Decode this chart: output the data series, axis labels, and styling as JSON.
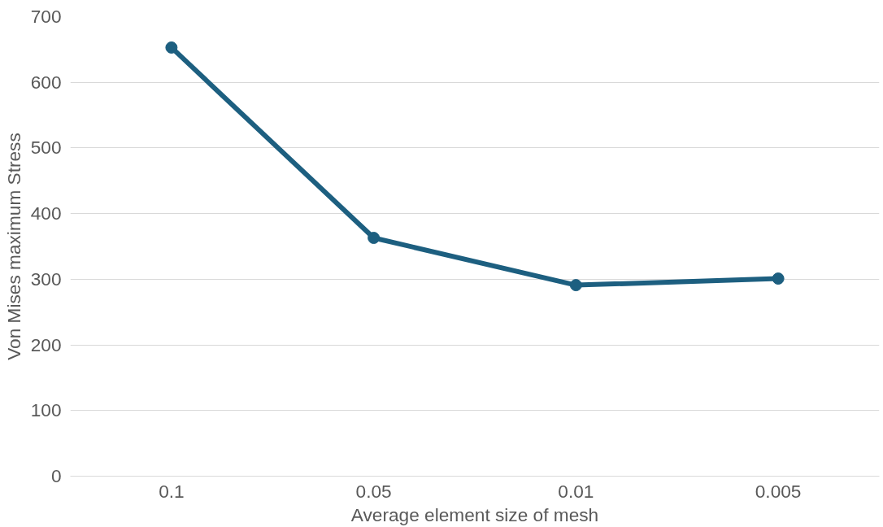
{
  "chart_data": {
    "type": "line",
    "xlabel": "Average element size of mesh",
    "ylabel": "Von Mises maximum Stress",
    "categories": [
      "0.1",
      "0.05",
      "0.01",
      "0.005"
    ],
    "series": [
      {
        "color": "#1d5f80",
        "values": [
          653,
          363,
          291,
          301
        ]
      }
    ],
    "ylim": [
      0,
      700
    ],
    "yticks": [
      0,
      100,
      200,
      300,
      400,
      500,
      600,
      700
    ],
    "grid": "y",
    "marker": "circle",
    "line_style": "solid"
  }
}
